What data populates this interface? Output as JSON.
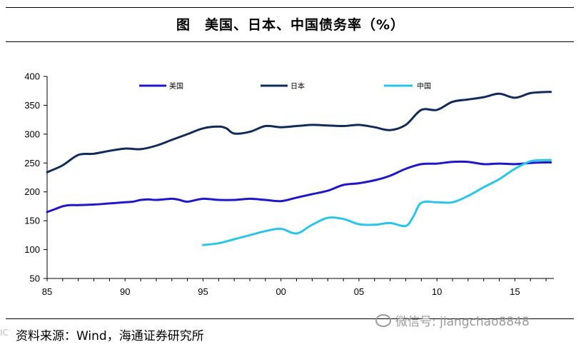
{
  "title": "图　美国、日本、中国债务率（%）",
  "source": "资料来源：Wind，海通证券研究所",
  "watermark": "微信号: jiangchao8848",
  "corner_mark": "IC",
  "chart_data": {
    "type": "line",
    "title": "",
    "xlabel": "",
    "ylabel": "",
    "x_range": [
      1985,
      2017.5
    ],
    "x_ticks": [
      1985,
      1990,
      1995,
      2000,
      2005,
      2010,
      2015
    ],
    "x_tick_labels": [
      "85",
      "90",
      "95",
      "00",
      "05",
      "10",
      "15"
    ],
    "ylim": [
      50,
      400
    ],
    "y_ticks": [
      50,
      100,
      150,
      200,
      250,
      300,
      350,
      400
    ],
    "y_tick_labels": [
      "50",
      "100",
      "150",
      "200",
      "250",
      "300",
      "350",
      "400"
    ],
    "grid": false,
    "legend_position": "top",
    "series": [
      {
        "name": "美国",
        "color": "#1f17c9",
        "x": [
          1985,
          1985.5,
          1986,
          1986.5,
          1987,
          1988,
          1989,
          1990,
          1990.5,
          1991,
          1991.5,
          1992,
          1993,
          1993.5,
          1994,
          1995,
          1996,
          1997,
          1998,
          1999,
          2000,
          2001,
          2002,
          2003,
          2004,
          2005,
          2006,
          2007,
          2008,
          2009,
          2010,
          2011,
          2012,
          2013,
          2014,
          2015,
          2016,
          2017,
          2017.3
        ],
        "y": [
          165,
          170,
          175,
          177,
          177,
          178,
          180,
          182,
          183,
          186,
          187,
          186,
          188,
          186,
          183,
          188,
          186,
          186,
          188,
          186,
          184,
          190,
          196,
          202,
          212,
          215,
          220,
          228,
          240,
          248,
          249,
          252,
          252,
          248,
          249,
          248,
          250,
          251,
          251
        ]
      },
      {
        "name": "日本",
        "color": "#0f2a5b",
        "x": [
          1985,
          1986,
          1987,
          1988,
          1989,
          1990,
          1991,
          1992,
          1993,
          1994,
          1995,
          1996,
          1996.5,
          1997,
          1998,
          1999,
          2000,
          2001,
          2002,
          2003,
          2004,
          2005,
          2006,
          2007,
          2008,
          2009,
          2010,
          2011,
          2012,
          2013,
          2014,
          2015,
          2016,
          2017,
          2017.3
        ],
        "y": [
          234,
          246,
          264,
          266,
          271,
          275,
          274,
          280,
          290,
          300,
          310,
          313,
          310,
          301,
          304,
          314,
          312,
          314,
          316,
          315,
          314,
          316,
          312,
          307,
          316,
          342,
          342,
          356,
          360,
          364,
          370,
          363,
          371,
          373,
          373
        ]
      },
      {
        "name": "中国",
        "color": "#29c6ea",
        "x": [
          1995,
          1996,
          1997,
          1998,
          1999,
          2000,
          2001,
          2002,
          2003,
          2004,
          2005,
          2006,
          2007,
          2008,
          2008.5,
          2009,
          2010,
          2011,
          2012,
          2013,
          2014,
          2015,
          2016,
          2017,
          2017.3
        ],
        "y": [
          108,
          111,
          118,
          125,
          132,
          136,
          128,
          143,
          155,
          153,
          144,
          143,
          146,
          141,
          158,
          181,
          182,
          182,
          193,
          208,
          222,
          240,
          253,
          255,
          255
        ]
      }
    ]
  }
}
